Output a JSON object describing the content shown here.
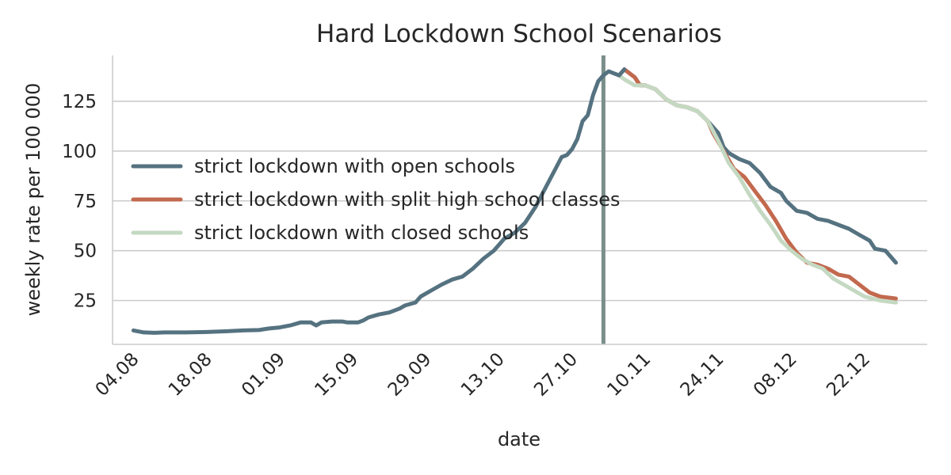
{
  "chart_data": {
    "type": "line",
    "title": "Hard Lockdown School Scenarios",
    "xlabel": "date",
    "ylabel": "weekly rate per 100 000",
    "x_axis": "date",
    "xlim": [
      "2020-07-31",
      "2021-01-03"
    ],
    "ylim": [
      3,
      148
    ],
    "grid": "horizontal",
    "legend_position": "center-left",
    "xticks": [
      {
        "date": "2020-08-04",
        "label": "04.08"
      },
      {
        "date": "2020-08-18",
        "label": "18.08"
      },
      {
        "date": "2020-09-01",
        "label": "01.09"
      },
      {
        "date": "2020-09-15",
        "label": "15.09"
      },
      {
        "date": "2020-09-29",
        "label": "29.09"
      },
      {
        "date": "2020-10-13",
        "label": "13.10"
      },
      {
        "date": "2020-10-27",
        "label": "27.10"
      },
      {
        "date": "2020-11-10",
        "label": "10.11"
      },
      {
        "date": "2020-11-24",
        "label": "24.11"
      },
      {
        "date": "2020-12-08",
        "label": "08.12"
      },
      {
        "date": "2020-12-22",
        "label": "22.12"
      }
    ],
    "yticks": [
      25,
      50,
      75,
      100,
      125
    ],
    "vline": {
      "date": "2020-11-02",
      "color": "#7a8f8a"
    },
    "history": {
      "color": "#557280",
      "points": [
        [
          "2020-08-04",
          10
        ],
        [
          "2020-08-06",
          9
        ],
        [
          "2020-08-08",
          8.8
        ],
        [
          "2020-08-10",
          9
        ],
        [
          "2020-08-14",
          9
        ],
        [
          "2020-08-18",
          9.2
        ],
        [
          "2020-08-22",
          9.6
        ],
        [
          "2020-08-25",
          10
        ],
        [
          "2020-08-28",
          10.2
        ],
        [
          "2020-08-30",
          11
        ],
        [
          "2020-09-01",
          11.5
        ],
        [
          "2020-09-03",
          12.5
        ],
        [
          "2020-09-05",
          14
        ],
        [
          "2020-09-07",
          14
        ],
        [
          "2020-09-08",
          12.5
        ],
        [
          "2020-09-09",
          14
        ],
        [
          "2020-09-11",
          14.5
        ],
        [
          "2020-09-13",
          14.5
        ],
        [
          "2020-09-14",
          14
        ],
        [
          "2020-09-16",
          14
        ],
        [
          "2020-09-17",
          15
        ],
        [
          "2020-09-18",
          16.5
        ],
        [
          "2020-09-20",
          18
        ],
        [
          "2020-09-22",
          19
        ],
        [
          "2020-09-24",
          21
        ],
        [
          "2020-09-25",
          22.5
        ],
        [
          "2020-09-27",
          24
        ],
        [
          "2020-09-28",
          27
        ],
        [
          "2020-09-30",
          30
        ],
        [
          "2020-10-02",
          33
        ],
        [
          "2020-10-04",
          35.5
        ],
        [
          "2020-10-06",
          37
        ],
        [
          "2020-10-08",
          41
        ],
        [
          "2020-10-10",
          46
        ],
        [
          "2020-10-12",
          50
        ],
        [
          "2020-10-14",
          56
        ],
        [
          "2020-10-16",
          59
        ],
        [
          "2020-10-18",
          64
        ],
        [
          "2020-10-20",
          72
        ],
        [
          "2020-10-22",
          82
        ],
        [
          "2020-10-24",
          92
        ],
        [
          "2020-10-25",
          97
        ],
        [
          "2020-10-26",
          98
        ],
        [
          "2020-10-27",
          101
        ],
        [
          "2020-10-28",
          106
        ],
        [
          "2020-10-29",
          115
        ],
        [
          "2020-10-30",
          118
        ],
        [
          "2020-10-31",
          128
        ],
        [
          "2020-11-01",
          135
        ],
        [
          "2020-11-02",
          138
        ],
        [
          "2020-11-03",
          140
        ],
        [
          "2020-11-04",
          139
        ],
        [
          "2020-11-05",
          138
        ],
        [
          "2020-11-06",
          141
        ]
      ]
    },
    "series": [
      {
        "name": "strict lockdown with open schools",
        "color": "#557280",
        "points": [
          [
            "2020-11-06",
            141
          ],
          [
            "2020-11-08",
            137
          ],
          [
            "2020-11-09",
            133
          ],
          [
            "2020-11-10",
            133
          ],
          [
            "2020-11-12",
            131
          ],
          [
            "2020-11-14",
            126
          ],
          [
            "2020-11-16",
            123
          ],
          [
            "2020-11-18",
            122
          ],
          [
            "2020-11-20",
            120
          ],
          [
            "2020-11-22",
            115
          ],
          [
            "2020-11-24",
            109
          ],
          [
            "2020-11-25",
            102
          ],
          [
            "2020-11-26",
            99
          ],
          [
            "2020-11-28",
            96
          ],
          [
            "2020-11-30",
            94
          ],
          [
            "2020-12-02",
            89
          ],
          [
            "2020-12-04",
            82
          ],
          [
            "2020-12-06",
            79
          ],
          [
            "2020-12-07",
            75
          ],
          [
            "2020-12-09",
            70
          ],
          [
            "2020-12-11",
            69
          ],
          [
            "2020-12-13",
            66
          ],
          [
            "2020-12-15",
            65
          ],
          [
            "2020-12-17",
            63
          ],
          [
            "2020-12-19",
            61
          ],
          [
            "2020-12-21",
            58
          ],
          [
            "2020-12-23",
            55
          ],
          [
            "2020-12-24",
            51
          ],
          [
            "2020-12-26",
            50
          ],
          [
            "2020-12-28",
            44
          ]
        ]
      },
      {
        "name": "strict lockdown with split high school classes",
        "color": "#c2694e",
        "points": [
          [
            "2020-11-06",
            141
          ],
          [
            "2020-11-08",
            137
          ],
          [
            "2020-11-09",
            133
          ],
          [
            "2020-11-10",
            133
          ],
          [
            "2020-11-12",
            131
          ],
          [
            "2020-11-14",
            126
          ],
          [
            "2020-11-16",
            123
          ],
          [
            "2020-11-18",
            122
          ],
          [
            "2020-11-20",
            120
          ],
          [
            "2020-11-22",
            115
          ],
          [
            "2020-11-23",
            109
          ],
          [
            "2020-11-25",
            100
          ],
          [
            "2020-11-27",
            91
          ],
          [
            "2020-11-29",
            87
          ],
          [
            "2020-12-01",
            80
          ],
          [
            "2020-12-03",
            73
          ],
          [
            "2020-12-05",
            65
          ],
          [
            "2020-12-07",
            56
          ],
          [
            "2020-12-09",
            49
          ],
          [
            "2020-12-11",
            44
          ],
          [
            "2020-12-13",
            43
          ],
          [
            "2020-12-15",
            41
          ],
          [
            "2020-12-17",
            38
          ],
          [
            "2020-12-19",
            37
          ],
          [
            "2020-12-21",
            33
          ],
          [
            "2020-12-23",
            29
          ],
          [
            "2020-12-25",
            27
          ],
          [
            "2020-12-28",
            26
          ]
        ]
      },
      {
        "name": "strict lockdown with closed schools",
        "color": "#c5d9c2",
        "points": [
          [
            "2020-11-03",
            140
          ],
          [
            "2020-11-05",
            138
          ],
          [
            "2020-11-06",
            136
          ],
          [
            "2020-11-08",
            133
          ],
          [
            "2020-11-09",
            133
          ],
          [
            "2020-11-10",
            133
          ],
          [
            "2020-11-12",
            131
          ],
          [
            "2020-11-14",
            126
          ],
          [
            "2020-11-16",
            123
          ],
          [
            "2020-11-18",
            122
          ],
          [
            "2020-11-20",
            120
          ],
          [
            "2020-11-22",
            115
          ],
          [
            "2020-11-24",
            105
          ],
          [
            "2020-11-26",
            94
          ],
          [
            "2020-11-28",
            87
          ],
          [
            "2020-11-30",
            78
          ],
          [
            "2020-12-02",
            70
          ],
          [
            "2020-12-04",
            63
          ],
          [
            "2020-12-06",
            55
          ],
          [
            "2020-12-08",
            50
          ],
          [
            "2020-12-10",
            46
          ],
          [
            "2020-12-12",
            43
          ],
          [
            "2020-12-14",
            41
          ],
          [
            "2020-12-16",
            36
          ],
          [
            "2020-12-18",
            33
          ],
          [
            "2020-12-20",
            30
          ],
          [
            "2020-12-22",
            27
          ],
          [
            "2020-12-25",
            25
          ],
          [
            "2020-12-28",
            24
          ]
        ]
      }
    ]
  }
}
